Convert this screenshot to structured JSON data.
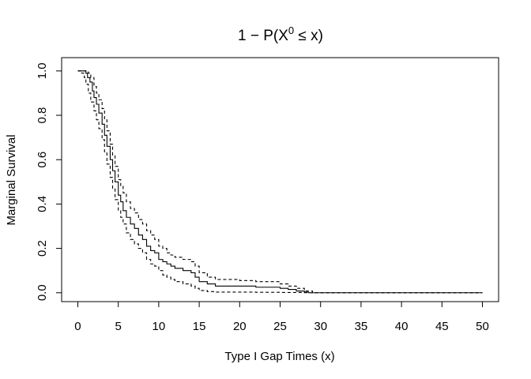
{
  "chart_data": {
    "type": "line",
    "title": {
      "prefix": "1 − P(X",
      "superscript": "0",
      "suffix": " ≤ x)"
    },
    "xlabel": "Type I Gap Times (x)",
    "ylabel": "Marginal Survival",
    "xlim": [
      -2,
      52
    ],
    "ylim": [
      -0.04,
      1.06
    ],
    "x_ticks": [
      0,
      5,
      10,
      15,
      20,
      25,
      30,
      35,
      40,
      45,
      50
    ],
    "x_tick_labels": [
      "0",
      "5",
      "10",
      "15",
      "20",
      "25",
      "30",
      "35",
      "40",
      "45",
      "50"
    ],
    "y_ticks": [
      0.0,
      0.2,
      0.4,
      0.6,
      0.8,
      1.0
    ],
    "y_tick_labels": [
      "0.0",
      "0.2",
      "0.4",
      "0.6",
      "0.8",
      "1.0"
    ],
    "grid": false,
    "legend": "none",
    "line_color": "#000000",
    "series": [
      {
        "style": "solid",
        "points": [
          [
            0,
            1.0
          ],
          [
            0.8,
            1.0
          ],
          [
            1.0,
            0.99
          ],
          [
            1.2,
            0.97
          ],
          [
            1.5,
            0.95
          ],
          [
            1.8,
            0.91
          ],
          [
            2.0,
            0.88
          ],
          [
            2.3,
            0.85
          ],
          [
            2.6,
            0.81
          ],
          [
            3.0,
            0.76
          ],
          [
            3.3,
            0.71
          ],
          [
            3.6,
            0.66
          ],
          [
            4.0,
            0.6
          ],
          [
            4.3,
            0.55
          ],
          [
            4.6,
            0.5
          ],
          [
            5.0,
            0.44
          ],
          [
            5.3,
            0.41
          ],
          [
            5.6,
            0.37
          ],
          [
            6.0,
            0.34
          ],
          [
            6.5,
            0.31
          ],
          [
            7.0,
            0.29
          ],
          [
            7.5,
            0.26
          ],
          [
            8.0,
            0.24
          ],
          [
            8.5,
            0.21
          ],
          [
            9.0,
            0.19
          ],
          [
            9.5,
            0.18
          ],
          [
            10.0,
            0.15
          ],
          [
            10.5,
            0.14
          ],
          [
            11.0,
            0.13
          ],
          [
            11.5,
            0.12
          ],
          [
            12.0,
            0.11
          ],
          [
            13.0,
            0.1
          ],
          [
            14.0,
            0.09
          ],
          [
            14.5,
            0.07
          ],
          [
            15.0,
            0.05
          ],
          [
            16.0,
            0.04
          ],
          [
            17.0,
            0.03
          ],
          [
            20.0,
            0.03
          ],
          [
            22.0,
            0.025
          ],
          [
            24.0,
            0.025
          ],
          [
            25.0,
            0.02
          ],
          [
            26.0,
            0.015
          ],
          [
            27.0,
            0.008
          ],
          [
            28.0,
            0.003
          ],
          [
            28.5,
            0.0
          ],
          [
            50,
            0.0
          ]
        ]
      },
      {
        "style": "dashed",
        "points": [
          [
            0,
            1.0
          ],
          [
            1.0,
            1.0
          ],
          [
            1.3,
            0.99
          ],
          [
            1.6,
            0.97
          ],
          [
            2.0,
            0.93
          ],
          [
            2.3,
            0.9
          ],
          [
            2.6,
            0.87
          ],
          [
            3.0,
            0.83
          ],
          [
            3.3,
            0.78
          ],
          [
            3.6,
            0.73
          ],
          [
            4.0,
            0.67
          ],
          [
            4.3,
            0.62
          ],
          [
            4.6,
            0.57
          ],
          [
            5.0,
            0.51
          ],
          [
            5.3,
            0.48
          ],
          [
            5.6,
            0.45
          ],
          [
            6.0,
            0.41
          ],
          [
            6.5,
            0.38
          ],
          [
            7.0,
            0.36
          ],
          [
            7.5,
            0.33
          ],
          [
            8.0,
            0.31
          ],
          [
            8.5,
            0.28
          ],
          [
            9.0,
            0.26
          ],
          [
            9.5,
            0.24
          ],
          [
            10.0,
            0.21
          ],
          [
            10.5,
            0.2
          ],
          [
            11.0,
            0.18
          ],
          [
            11.5,
            0.17
          ],
          [
            12.0,
            0.16
          ],
          [
            13.0,
            0.15
          ],
          [
            14.0,
            0.14
          ],
          [
            14.5,
            0.12
          ],
          [
            15.0,
            0.09
          ],
          [
            16.0,
            0.07
          ],
          [
            17.0,
            0.06
          ],
          [
            20.0,
            0.055
          ],
          [
            22.0,
            0.05
          ],
          [
            24.0,
            0.05
          ],
          [
            25.0,
            0.04
          ],
          [
            26.0,
            0.03
          ],
          [
            27.0,
            0.02
          ],
          [
            28.0,
            0.008
          ],
          [
            29.0,
            0.0
          ],
          [
            50,
            0.0
          ]
        ]
      },
      {
        "style": "dashed",
        "points": [
          [
            0,
            1.0
          ],
          [
            0.5,
            0.99
          ],
          [
            0.8,
            0.97
          ],
          [
            1.0,
            0.94
          ],
          [
            1.3,
            0.9
          ],
          [
            1.6,
            0.86
          ],
          [
            2.0,
            0.82
          ],
          [
            2.3,
            0.78
          ],
          [
            2.6,
            0.74
          ],
          [
            3.0,
            0.69
          ],
          [
            3.3,
            0.63
          ],
          [
            3.6,
            0.58
          ],
          [
            4.0,
            0.52
          ],
          [
            4.3,
            0.47
          ],
          [
            4.6,
            0.42
          ],
          [
            5.0,
            0.37
          ],
          [
            5.3,
            0.34
          ],
          [
            5.6,
            0.31
          ],
          [
            6.0,
            0.27
          ],
          [
            6.5,
            0.24
          ],
          [
            7.0,
            0.22
          ],
          [
            7.5,
            0.2
          ],
          [
            8.0,
            0.18
          ],
          [
            8.5,
            0.15
          ],
          [
            9.0,
            0.13
          ],
          [
            9.5,
            0.12
          ],
          [
            10.0,
            0.1
          ],
          [
            10.5,
            0.08
          ],
          [
            11.0,
            0.07
          ],
          [
            11.5,
            0.06
          ],
          [
            12.0,
            0.05
          ],
          [
            13.0,
            0.04
          ],
          [
            14.0,
            0.03
          ],
          [
            14.5,
            0.02
          ],
          [
            15.0,
            0.01
          ],
          [
            16.0,
            0.005
          ],
          [
            17.0,
            0.003
          ],
          [
            20.0,
            0.003
          ],
          [
            22.0,
            0.002
          ],
          [
            25.0,
            0.001
          ],
          [
            28.0,
            0.0
          ],
          [
            50,
            0.0
          ]
        ]
      }
    ]
  }
}
